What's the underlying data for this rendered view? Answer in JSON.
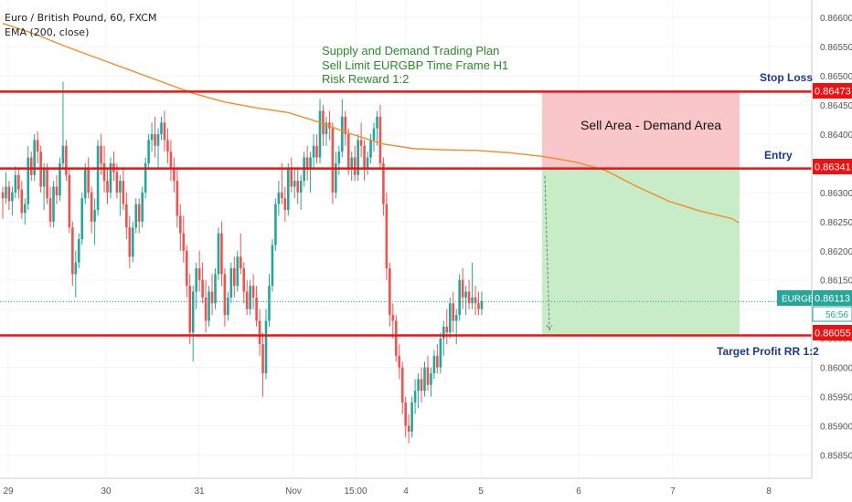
{
  "header": {
    "symbol_line": "Euro / British Pound, 60, FXCM",
    "indicator_line": "EMA (200, close)"
  },
  "plan": {
    "line1": "Supply and Demand Trading Plan",
    "line2": "Sell Limit EURGBP Time Frame H1",
    "line3": "Risk Reward 1:2"
  },
  "annotations": {
    "stop_loss": "Stop Loss",
    "entry": "Entry",
    "sell_area": "Sell Area - Demand Area",
    "target": "Target Profit RR 1:2"
  },
  "price_badges": {
    "stop_loss": "0.86473",
    "entry": "0.86341",
    "target": "0.86055",
    "current_symbol": "EURGBP",
    "current": "0.86113",
    "countdown": "56:56"
  },
  "colors": {
    "up": "#26a69a",
    "down": "#ef5350",
    "level_line": "#ee1111",
    "ema": "#f28c28",
    "risk_zone": "#f9c6c9",
    "reward_zone": "#c8ebc8",
    "annotation_blue": "#1a3a8a",
    "plan_green": "#2a8a2a"
  },
  "chart_data": {
    "type": "candlestick",
    "symbol": "EURGBP",
    "timeframe": "60",
    "y_axis": {
      "range": [
        0.8581,
        0.8663
      ],
      "ticks": [
        "0.86600",
        "0.86550",
        "0.86500",
        "0.86450",
        "0.86400",
        "0.86350",
        "0.86300",
        "0.86250",
        "0.86200",
        "0.86150",
        "0.86100",
        "0.86050",
        "0.86000",
        "0.85950",
        "0.85900",
        "0.85850"
      ]
    },
    "x_axis": {
      "ticks": [
        "29",
        "30",
        "31",
        "Nov",
        "15:00",
        "4",
        "5",
        "6",
        "7",
        "8"
      ]
    },
    "levels": {
      "stop_loss": 0.86473,
      "entry": 0.86341,
      "target": 0.86055,
      "current": 0.86113
    },
    "ema_200": [
      [
        0,
        0.8659
      ],
      [
        10,
        0.86572
      ],
      [
        20,
        0.8655
      ],
      [
        30,
        0.8653
      ],
      [
        40,
        0.8651
      ],
      [
        50,
        0.8649
      ],
      [
        60,
        0.8647
      ],
      [
        70,
        0.86455
      ],
      [
        80,
        0.86445
      ],
      [
        90,
        0.86437
      ],
      [
        100,
        0.8642
      ],
      [
        110,
        0.864
      ],
      [
        120,
        0.86383
      ],
      [
        130,
        0.86375
      ],
      [
        140,
        0.86373
      ],
      [
        150,
        0.86372
      ],
      [
        160,
        0.86368
      ],
      [
        170,
        0.86362
      ],
      [
        180,
        0.86353
      ],
      [
        190,
        0.86338
      ],
      [
        200,
        0.8631
      ],
      [
        210,
        0.86285
      ],
      [
        220,
        0.86268
      ],
      [
        230,
        0.86255
      ],
      [
        232,
        0.86248
      ]
    ],
    "candles": [
      [
        0.863,
        0.8631,
        0.86255,
        0.8629
      ],
      [
        0.8629,
        0.86335,
        0.8628,
        0.8631
      ],
      [
        0.8631,
        0.8632,
        0.8627,
        0.86285
      ],
      [
        0.86285,
        0.8631,
        0.8626,
        0.863
      ],
      [
        0.863,
        0.86345,
        0.8629,
        0.8633
      ],
      [
        0.8633,
        0.8634,
        0.8629,
        0.86305
      ],
      [
        0.86305,
        0.8632,
        0.86255,
        0.86265
      ],
      [
        0.86265,
        0.8629,
        0.86245,
        0.8628
      ],
      [
        0.8628,
        0.8638,
        0.8627,
        0.8636
      ],
      [
        0.8636,
        0.8637,
        0.8632,
        0.8633
      ],
      [
        0.8633,
        0.864,
        0.8632,
        0.8639
      ],
      [
        0.8639,
        0.86405,
        0.8635,
        0.8637
      ],
      [
        0.8637,
        0.8638,
        0.863,
        0.8631
      ],
      [
        0.8631,
        0.8635,
        0.8627,
        0.8634
      ],
      [
        0.8634,
        0.8635,
        0.8628,
        0.8629
      ],
      [
        0.8629,
        0.8631,
        0.8624,
        0.8625
      ],
      [
        0.8625,
        0.8632,
        0.8624,
        0.8631
      ],
      [
        0.8631,
        0.8633,
        0.8628,
        0.86295
      ],
      [
        0.86295,
        0.8636,
        0.86285,
        0.8635
      ],
      [
        0.8635,
        0.8649,
        0.8634,
        0.8638
      ],
      [
        0.8638,
        0.8639,
        0.8632,
        0.8633
      ],
      [
        0.8633,
        0.8634,
        0.8623,
        0.8624
      ],
      [
        0.8624,
        0.8625,
        0.8614,
        0.8616
      ],
      [
        0.8616,
        0.862,
        0.8612,
        0.8618
      ],
      [
        0.8618,
        0.8623,
        0.8617,
        0.8622
      ],
      [
        0.8622,
        0.863,
        0.8621,
        0.8629
      ],
      [
        0.8629,
        0.8635,
        0.8628,
        0.8634
      ],
      [
        0.8634,
        0.8636,
        0.8629,
        0.863
      ],
      [
        0.863,
        0.8631,
        0.8623,
        0.8625
      ],
      [
        0.8625,
        0.8629,
        0.8621,
        0.8627
      ],
      [
        0.8627,
        0.8639,
        0.8626,
        0.8638
      ],
      [
        0.8638,
        0.864,
        0.8633,
        0.8635
      ],
      [
        0.8635,
        0.8638,
        0.863,
        0.8632
      ],
      [
        0.8632,
        0.8634,
        0.8628,
        0.863
      ],
      [
        0.863,
        0.8636,
        0.8629,
        0.8635
      ],
      [
        0.8635,
        0.8637,
        0.8632,
        0.86335
      ],
      [
        0.86335,
        0.8635,
        0.8629,
        0.863
      ],
      [
        0.863,
        0.8633,
        0.8626,
        0.8632
      ],
      [
        0.8632,
        0.8634,
        0.8627,
        0.8628
      ],
      [
        0.8628,
        0.863,
        0.8622,
        0.8624
      ],
      [
        0.8624,
        0.8626,
        0.8617,
        0.8619
      ],
      [
        0.8619,
        0.8625,
        0.8618,
        0.8624
      ],
      [
        0.8624,
        0.8629,
        0.8623,
        0.8628
      ],
      [
        0.8628,
        0.8629,
        0.8623,
        0.8625
      ],
      [
        0.8625,
        0.8631,
        0.8624,
        0.863
      ],
      [
        0.863,
        0.8636,
        0.8629,
        0.8635
      ],
      [
        0.8635,
        0.864,
        0.8634,
        0.8639
      ],
      [
        0.8639,
        0.8642,
        0.8637,
        0.864
      ],
      [
        0.864,
        0.8643,
        0.8636,
        0.8638
      ],
      [
        0.8638,
        0.8641,
        0.8634,
        0.864
      ],
      [
        0.864,
        0.8643,
        0.8639,
        0.8642
      ],
      [
        0.8642,
        0.8644,
        0.8637,
        0.8639
      ],
      [
        0.8639,
        0.8641,
        0.8635,
        0.8637
      ],
      [
        0.8637,
        0.8639,
        0.8632,
        0.8634
      ],
      [
        0.8634,
        0.8636,
        0.863,
        0.8632
      ],
      [
        0.8632,
        0.8634,
        0.8624,
        0.8626
      ],
      [
        0.8626,
        0.8628,
        0.862,
        0.8623
      ],
      [
        0.8623,
        0.8626,
        0.8618,
        0.862
      ],
      [
        0.862,
        0.8621,
        0.8612,
        0.8614
      ],
      [
        0.8614,
        0.8616,
        0.8604,
        0.8606
      ],
      [
        0.8606,
        0.8614,
        0.8601,
        0.8613
      ],
      [
        0.8613,
        0.8618,
        0.861,
        0.8617
      ],
      [
        0.8617,
        0.862,
        0.8613,
        0.8615
      ],
      [
        0.8615,
        0.8618,
        0.8611,
        0.8612
      ],
      [
        0.8612,
        0.8615,
        0.8606,
        0.8608
      ],
      [
        0.8608,
        0.8614,
        0.8607,
        0.8613
      ],
      [
        0.8613,
        0.8616,
        0.8609,
        0.8611
      ],
      [
        0.8611,
        0.8617,
        0.861,
        0.8616
      ],
      [
        0.8616,
        0.8624,
        0.8615,
        0.8623
      ],
      [
        0.8623,
        0.8625,
        0.8614,
        0.8616
      ],
      [
        0.8616,
        0.8617,
        0.8607,
        0.8609
      ],
      [
        0.8609,
        0.8613,
        0.8608,
        0.8612
      ],
      [
        0.8612,
        0.8618,
        0.8611,
        0.8617
      ],
      [
        0.8617,
        0.8619,
        0.8612,
        0.8614
      ],
      [
        0.8614,
        0.862,
        0.8613,
        0.8619
      ],
      [
        0.8619,
        0.8623,
        0.8616,
        0.8617
      ],
      [
        0.8617,
        0.8618,
        0.8611,
        0.8613
      ],
      [
        0.8613,
        0.8615,
        0.8609,
        0.861
      ],
      [
        0.861,
        0.8615,
        0.8609,
        0.8614
      ],
      [
        0.8614,
        0.8616,
        0.861,
        0.8612
      ],
      [
        0.8612,
        0.8614,
        0.8607,
        0.8608
      ],
      [
        0.8608,
        0.861,
        0.8602,
        0.8604
      ],
      [
        0.8604,
        0.8606,
        0.8595,
        0.8599
      ],
      [
        0.8599,
        0.861,
        0.8598,
        0.8608
      ],
      [
        0.8608,
        0.8616,
        0.8607,
        0.8614
      ],
      [
        0.8614,
        0.8622,
        0.8613,
        0.8621
      ],
      [
        0.8621,
        0.8629,
        0.862,
        0.8628
      ],
      [
        0.8628,
        0.8632,
        0.8626,
        0.863
      ],
      [
        0.863,
        0.8635,
        0.8628,
        0.8629
      ],
      [
        0.8629,
        0.8631,
        0.8625,
        0.8627
      ],
      [
        0.8627,
        0.8635,
        0.8626,
        0.8634
      ],
      [
        0.8634,
        0.8636,
        0.863,
        0.8631
      ],
      [
        0.8631,
        0.8634,
        0.8629,
        0.8632
      ],
      [
        0.8632,
        0.8634,
        0.8628,
        0.863
      ],
      [
        0.863,
        0.8633,
        0.8627,
        0.8632
      ],
      [
        0.8632,
        0.8637,
        0.8631,
        0.8636
      ],
      [
        0.8636,
        0.8638,
        0.8632,
        0.8634
      ],
      [
        0.8634,
        0.8637,
        0.863,
        0.8636
      ],
      [
        0.8636,
        0.864,
        0.8634,
        0.8638
      ],
      [
        0.8638,
        0.864,
        0.8635,
        0.8636
      ],
      [
        0.8636,
        0.8646,
        0.8635,
        0.8644
      ],
      [
        0.8644,
        0.8645,
        0.8638,
        0.864
      ],
      [
        0.864,
        0.8643,
        0.8638,
        0.8642
      ],
      [
        0.8642,
        0.8644,
        0.8639,
        0.8641
      ],
      [
        0.8641,
        0.8642,
        0.8628,
        0.863
      ],
      [
        0.863,
        0.8637,
        0.8629,
        0.8635
      ],
      [
        0.8635,
        0.8638,
        0.8633,
        0.8637
      ],
      [
        0.8637,
        0.8646,
        0.8636,
        0.8643
      ],
      [
        0.8643,
        0.8644,
        0.8638,
        0.864
      ],
      [
        0.864,
        0.8641,
        0.8633,
        0.8634
      ],
      [
        0.8634,
        0.8637,
        0.8632,
        0.8636
      ],
      [
        0.8636,
        0.8638,
        0.8632,
        0.8633
      ],
      [
        0.8633,
        0.864,
        0.8632,
        0.8639
      ],
      [
        0.8639,
        0.8642,
        0.8636,
        0.8638
      ],
      [
        0.8638,
        0.8639,
        0.8632,
        0.8634
      ],
      [
        0.8634,
        0.8637,
        0.8633,
        0.8636
      ],
      [
        0.8636,
        0.864,
        0.8635,
        0.8639
      ],
      [
        0.8639,
        0.8642,
        0.8637,
        0.8641
      ],
      [
        0.8641,
        0.8644,
        0.8638,
        0.8643
      ],
      [
        0.8643,
        0.8645,
        0.8634,
        0.8635
      ],
      [
        0.8635,
        0.8636,
        0.8626,
        0.8628
      ],
      [
        0.8628,
        0.863,
        0.8615,
        0.8617
      ],
      [
        0.8617,
        0.8618,
        0.8607,
        0.8609
      ],
      [
        0.8609,
        0.8611,
        0.8605,
        0.8608
      ],
      [
        0.8608,
        0.8609,
        0.8601,
        0.8602
      ],
      [
        0.8602,
        0.8604,
        0.8598,
        0.86
      ],
      [
        0.86,
        0.8601,
        0.8592,
        0.8594
      ],
      [
        0.8594,
        0.8595,
        0.8588,
        0.859
      ],
      [
        0.859,
        0.8592,
        0.8587,
        0.8589
      ],
      [
        0.8589,
        0.8595,
        0.8588,
        0.8594
      ],
      [
        0.8594,
        0.8598,
        0.8592,
        0.8596
      ],
      [
        0.8596,
        0.8599,
        0.8593,
        0.8598
      ],
      [
        0.8598,
        0.86,
        0.8594,
        0.8596
      ],
      [
        0.8596,
        0.8601,
        0.8595,
        0.86
      ],
      [
        0.86,
        0.8602,
        0.8596,
        0.8597
      ],
      [
        0.8597,
        0.86,
        0.8595,
        0.8599
      ],
      [
        0.8599,
        0.8603,
        0.8598,
        0.8602
      ],
      [
        0.8602,
        0.8604,
        0.8599,
        0.86
      ],
      [
        0.86,
        0.8606,
        0.8599,
        0.8605
      ],
      [
        0.8605,
        0.8608,
        0.8602,
        0.8607
      ],
      [
        0.8607,
        0.861,
        0.8604,
        0.8606
      ],
      [
        0.8606,
        0.8612,
        0.8605,
        0.8611
      ],
      [
        0.8611,
        0.8613,
        0.8606,
        0.8608
      ],
      [
        0.8608,
        0.861,
        0.8604,
        0.8609
      ],
      [
        0.8609,
        0.8616,
        0.8608,
        0.8615
      ],
      [
        0.8615,
        0.8617,
        0.861,
        0.8612
      ],
      [
        0.8612,
        0.8614,
        0.8609,
        0.8613
      ],
      [
        0.8613,
        0.8615,
        0.861,
        0.8611
      ],
      [
        0.8611,
        0.8618,
        0.861,
        0.8612
      ],
      [
        0.8612,
        0.8614,
        0.8609,
        0.8611
      ],
      [
        0.8611,
        0.8613,
        0.8609,
        0.861
      ],
      [
        0.861,
        0.8613,
        0.8609,
        0.86113
      ]
    ]
  }
}
